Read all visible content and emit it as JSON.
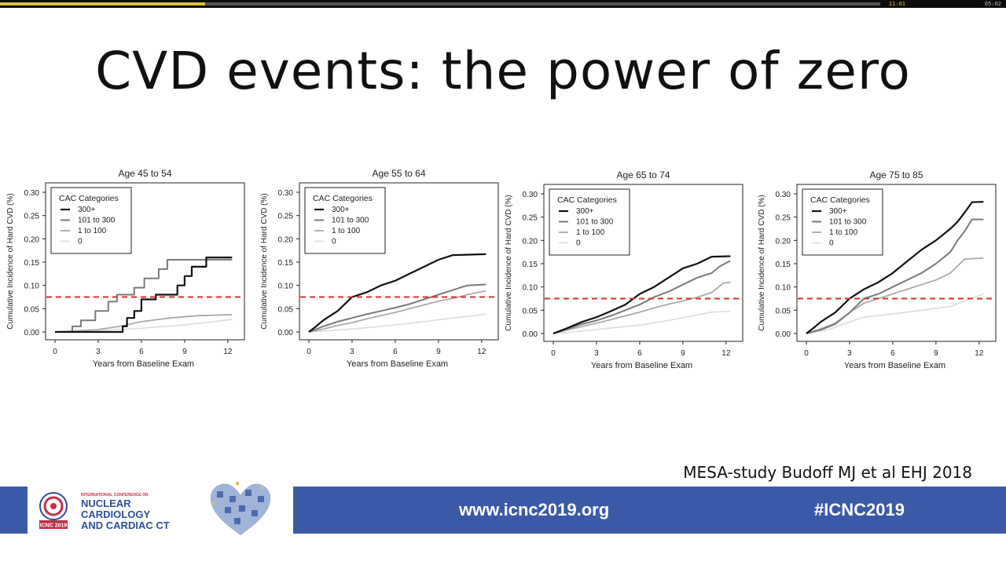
{
  "player": {
    "time_current": "11:01",
    "time_total": "05:02",
    "progress": 0.233
  },
  "slide": {
    "title": "CVD events: the power of zero",
    "citation": "MESA-study Budoff MJ et al EHJ 2018"
  },
  "footer": {
    "conf_small": "INTERNATIONAL CONFERENCE ON",
    "conf_name_line1": "NUCLEAR",
    "conf_name_line2": "CARDIOLOGY",
    "conf_name_line3": "AND CARDIAC CT",
    "logo_text": "ICNC 2019",
    "website": "www.icnc2019.org",
    "hashtag": "#ICNC2019"
  },
  "colors": {
    "band": "#3a5aa8",
    "reference_line": "#d9302b",
    "series": [
      "#111111",
      "#7a7a7a",
      "#aaaaaa",
      "#dcdcdc"
    ]
  },
  "chart_data": [
    {
      "type": "line",
      "title": "Age 45 to 54",
      "xlabel": "Years from Baseline Exam",
      "ylabel": "Cumulative Incidence of Hard CVD (%)",
      "xlim": [
        0,
        12.5
      ],
      "ylim": [
        0,
        0.3
      ],
      "xticks": [
        0,
        3,
        6,
        9,
        12
      ],
      "yticks": [
        "0.00",
        "0.05",
        "0.10",
        "0.15",
        "0.20",
        "0.25",
        "0.30"
      ],
      "legend_title": "CAC Categories",
      "legend_position": "top-left",
      "reference_line": 0.075,
      "series": [
        {
          "name": "300+",
          "points": [
            [
              0,
              0
            ],
            [
              4.7,
              0
            ],
            [
              4.7,
              0.012
            ],
            [
              5,
              0.012
            ],
            [
              5,
              0.03
            ],
            [
              5.5,
              0.03
            ],
            [
              5.5,
              0.045
            ],
            [
              6,
              0.045
            ],
            [
              6,
              0.07
            ],
            [
              7,
              0.07
            ],
            [
              7,
              0.08
            ],
            [
              8.5,
              0.08
            ],
            [
              8.5,
              0.1
            ],
            [
              9,
              0.1
            ],
            [
              9,
              0.12
            ],
            [
              9.5,
              0.12
            ],
            [
              9.5,
              0.14
            ],
            [
              10.5,
              0.14
            ],
            [
              10.5,
              0.16
            ],
            [
              12.3,
              0.16
            ]
          ]
        },
        {
          "name": "101 to 300",
          "points": [
            [
              0,
              0
            ],
            [
              1.2,
              0
            ],
            [
              1.2,
              0.012
            ],
            [
              1.8,
              0.012
            ],
            [
              1.8,
              0.025
            ],
            [
              2.8,
              0.025
            ],
            [
              2.8,
              0.045
            ],
            [
              3.7,
              0.045
            ],
            [
              3.7,
              0.065
            ],
            [
              4.3,
              0.065
            ],
            [
              4.3,
              0.08
            ],
            [
              5.5,
              0.08
            ],
            [
              5.5,
              0.095
            ],
            [
              6.2,
              0.095
            ],
            [
              6.2,
              0.115
            ],
            [
              7.2,
              0.115
            ],
            [
              7.2,
              0.135
            ],
            [
              7.8,
              0.135
            ],
            [
              7.8,
              0.155
            ],
            [
              12.3,
              0.155
            ]
          ]
        },
        {
          "name": "1 to 100",
          "points": [
            [
              0,
              0
            ],
            [
              3,
              0.005
            ],
            [
              4.5,
              0.012
            ],
            [
              6,
              0.022
            ],
            [
              8,
              0.03
            ],
            [
              10,
              0.035
            ],
            [
              12.3,
              0.037
            ]
          ]
        },
        {
          "name": "0",
          "points": [
            [
              0,
              0
            ],
            [
              3,
              0.003
            ],
            [
              6,
              0.008
            ],
            [
              9,
              0.015
            ],
            [
              11,
              0.022
            ],
            [
              12.3,
              0.027
            ]
          ]
        }
      ]
    },
    {
      "type": "line",
      "title": "Age 55 to 64",
      "xlabel": "Years from Baseline Exam",
      "ylabel": "Cumulative Incidence of Hard CVD (%)",
      "xlim": [
        0,
        12.5
      ],
      "ylim": [
        0,
        0.3
      ],
      "xticks": [
        0,
        3,
        6,
        9,
        12
      ],
      "yticks": [
        "0.00",
        "0.05",
        "0.10",
        "0.15",
        "0.20",
        "0.25",
        "0.30"
      ],
      "legend_title": "CAC Categories",
      "legend_position": "top-left",
      "reference_line": 0.075,
      "series": [
        {
          "name": "300+",
          "points": [
            [
              0,
              0
            ],
            [
              0.5,
              0.012
            ],
            [
              1,
              0.025
            ],
            [
              1.5,
              0.035
            ],
            [
              2,
              0.045
            ],
            [
              2.5,
              0.06
            ],
            [
              3,
              0.075
            ],
            [
              4,
              0.085
            ],
            [
              5,
              0.1
            ],
            [
              6,
              0.11
            ],
            [
              7,
              0.125
            ],
            [
              8,
              0.14
            ],
            [
              9,
              0.155
            ],
            [
              10,
              0.165
            ],
            [
              12.3,
              0.167
            ]
          ]
        },
        {
          "name": "101 to 300",
          "points": [
            [
              0,
              0
            ],
            [
              1,
              0.012
            ],
            [
              2,
              0.022
            ],
            [
              3,
              0.03
            ],
            [
              4,
              0.038
            ],
            [
              5,
              0.045
            ],
            [
              6,
              0.052
            ],
            [
              7,
              0.06
            ],
            [
              8,
              0.07
            ],
            [
              9,
              0.08
            ],
            [
              10,
              0.09
            ],
            [
              11,
              0.1
            ],
            [
              12.3,
              0.102
            ]
          ]
        },
        {
          "name": "1 to 100",
          "points": [
            [
              0,
              0
            ],
            [
              1,
              0.006
            ],
            [
              2,
              0.014
            ],
            [
              3,
              0.02
            ],
            [
              4,
              0.028
            ],
            [
              5,
              0.035
            ],
            [
              6,
              0.042
            ],
            [
              7,
              0.05
            ],
            [
              8,
              0.058
            ],
            [
              9,
              0.066
            ],
            [
              10,
              0.072
            ],
            [
              11,
              0.08
            ],
            [
              12.3,
              0.088
            ]
          ]
        },
        {
          "name": "0",
          "points": [
            [
              0,
              0
            ],
            [
              2,
              0.004
            ],
            [
              4,
              0.009
            ],
            [
              6,
              0.015
            ],
            [
              8,
              0.022
            ],
            [
              10,
              0.03
            ],
            [
              12.3,
              0.038
            ]
          ]
        }
      ]
    },
    {
      "type": "line",
      "title": "Age 65 to 74",
      "xlabel": "Years from Baseline Exam",
      "ylabel": "Cumulative Incidence of Hard CVD (%)",
      "xlim": [
        0,
        12.5
      ],
      "ylim": [
        0,
        0.3
      ],
      "xticks": [
        0,
        3,
        6,
        9,
        12
      ],
      "yticks": [
        "0.00",
        "0.05",
        "0.10",
        "0.15",
        "0.20",
        "0.25",
        "0.30"
      ],
      "legend_title": "CAC Categories",
      "legend_position": "top-left",
      "reference_line": 0.075,
      "series": [
        {
          "name": "300+",
          "points": [
            [
              0,
              0
            ],
            [
              1,
              0.012
            ],
            [
              2,
              0.025
            ],
            [
              3,
              0.035
            ],
            [
              4,
              0.048
            ],
            [
              5,
              0.062
            ],
            [
              6,
              0.085
            ],
            [
              7,
              0.1
            ],
            [
              8,
              0.12
            ],
            [
              9,
              0.14
            ],
            [
              10,
              0.15
            ],
            [
              11,
              0.165
            ],
            [
              12.3,
              0.166
            ]
          ]
        },
        {
          "name": "101 to 300",
          "points": [
            [
              0,
              0
            ],
            [
              1,
              0.01
            ],
            [
              2,
              0.02
            ],
            [
              3,
              0.028
            ],
            [
              4,
              0.038
            ],
            [
              5,
              0.05
            ],
            [
              6,
              0.062
            ],
            [
              7,
              0.078
            ],
            [
              8,
              0.09
            ],
            [
              9,
              0.105
            ],
            [
              10,
              0.12
            ],
            [
              11,
              0.13
            ],
            [
              11.6,
              0.145
            ],
            [
              12.3,
              0.156
            ]
          ]
        },
        {
          "name": "1 to 100",
          "points": [
            [
              0,
              0
            ],
            [
              1,
              0.008
            ],
            [
              2,
              0.015
            ],
            [
              3,
              0.022
            ],
            [
              4,
              0.03
            ],
            [
              5,
              0.038
            ],
            [
              6,
              0.046
            ],
            [
              7,
              0.055
            ],
            [
              8,
              0.063
            ],
            [
              9,
              0.07
            ],
            [
              10,
              0.078
            ],
            [
              11,
              0.088
            ],
            [
              11.8,
              0.108
            ],
            [
              12.3,
              0.11
            ]
          ]
        },
        {
          "name": "0",
          "points": [
            [
              0,
              0
            ],
            [
              2,
              0.005
            ],
            [
              4,
              0.012
            ],
            [
              6,
              0.018
            ],
            [
              8,
              0.028
            ],
            [
              10,
              0.04
            ],
            [
              11,
              0.046
            ],
            [
              12.3,
              0.048
            ]
          ]
        }
      ]
    },
    {
      "type": "line",
      "title": "Age 75 to 85",
      "xlabel": "Years from Baseline Exam",
      "ylabel": "Cumulative Incidence of Hard CVD (%)",
      "xlim": [
        0,
        12.5
      ],
      "ylim": [
        0,
        0.3
      ],
      "xticks": [
        0,
        3,
        6,
        9,
        12
      ],
      "yticks": [
        "0.00",
        "0.05",
        "0.10",
        "0.15",
        "0.20",
        "0.25",
        "0.30"
      ],
      "legend_title": "CAC Categories",
      "legend_position": "top-left",
      "reference_line": 0.075,
      "series": [
        {
          "name": "300+",
          "points": [
            [
              0,
              0
            ],
            [
              0.5,
              0.012
            ],
            [
              1,
              0.025
            ],
            [
              1.5,
              0.035
            ],
            [
              2,
              0.045
            ],
            [
              2.5,
              0.06
            ],
            [
              3,
              0.075
            ],
            [
              3.5,
              0.085
            ],
            [
              4,
              0.095
            ],
            [
              5,
              0.11
            ],
            [
              6,
              0.13
            ],
            [
              7,
              0.155
            ],
            [
              8,
              0.18
            ],
            [
              9,
              0.2
            ],
            [
              10,
              0.225
            ],
            [
              10.5,
              0.24
            ],
            [
              11,
              0.26
            ],
            [
              11.5,
              0.282
            ],
            [
              12.3,
              0.283
            ]
          ]
        },
        {
          "name": "101 to 300",
          "points": [
            [
              0,
              0
            ],
            [
              1,
              0.008
            ],
            [
              2,
              0.02
            ],
            [
              3,
              0.045
            ],
            [
              4,
              0.075
            ],
            [
              5,
              0.085
            ],
            [
              6,
              0.1
            ],
            [
              7,
              0.115
            ],
            [
              8,
              0.13
            ],
            [
              9,
              0.15
            ],
            [
              10,
              0.175
            ],
            [
              10.5,
              0.2
            ],
            [
              11,
              0.22
            ],
            [
              11.5,
              0.245
            ],
            [
              12.3,
              0.245
            ]
          ]
        },
        {
          "name": "1 to 100",
          "points": [
            [
              0,
              0
            ],
            [
              1,
              0.01
            ],
            [
              2,
              0.022
            ],
            [
              3,
              0.045
            ],
            [
              4,
              0.065
            ],
            [
              5,
              0.075
            ],
            [
              6,
              0.085
            ],
            [
              7,
              0.095
            ],
            [
              8,
              0.105
            ],
            [
              9,
              0.115
            ],
            [
              10,
              0.13
            ],
            [
              11,
              0.16
            ],
            [
              12.3,
              0.162
            ]
          ]
        },
        {
          "name": "0",
          "points": [
            [
              0,
              0
            ],
            [
              1.5,
              0.008
            ],
            [
              3,
              0.025
            ],
            [
              4,
              0.035
            ],
            [
              6,
              0.042
            ],
            [
              8,
              0.05
            ],
            [
              10,
              0.058
            ],
            [
              11,
              0.07
            ],
            [
              12.3,
              0.085
            ]
          ]
        }
      ]
    }
  ]
}
